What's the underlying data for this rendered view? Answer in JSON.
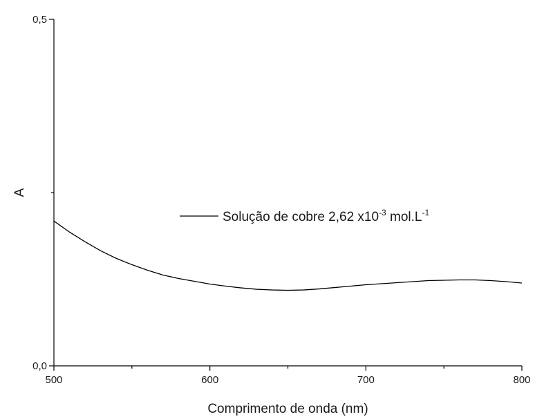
{
  "chart_data": {
    "type": "line",
    "xlabel": "Comprimento de onda (nm)",
    "ylabel": "A",
    "xlim": [
      500,
      800
    ],
    "ylim": [
      0.0,
      0.5
    ],
    "x_ticks": [
      500,
      600,
      700,
      800
    ],
    "x_tick_labels": [
      "500",
      "600",
      "700",
      "800"
    ],
    "y_ticks": [
      0.0,
      0.5
    ],
    "y_tick_labels": [
      "0,0",
      "0,5"
    ],
    "legend": {
      "placement": "center-right",
      "text": "Solução de cobre 2,62 x10",
      "sup1": "-3",
      "mid": " mol.L",
      "sup2": "-1"
    },
    "grid": false,
    "series": [
      {
        "color": "#000000",
        "x": [
          500,
          510,
          520,
          530,
          540,
          550,
          560,
          570,
          580,
          590,
          600,
          610,
          620,
          630,
          640,
          650,
          660,
          670,
          680,
          690,
          700,
          710,
          720,
          730,
          740,
          750,
          760,
          770,
          780,
          790,
          800
        ],
        "y": [
          0.209,
          0.193,
          0.179,
          0.166,
          0.155,
          0.146,
          0.138,
          0.131,
          0.126,
          0.122,
          0.118,
          0.115,
          0.1125,
          0.1105,
          0.1095,
          0.109,
          0.1095,
          0.111,
          0.113,
          0.115,
          0.117,
          0.1185,
          0.12,
          0.1215,
          0.123,
          0.1235,
          0.124,
          0.124,
          0.123,
          0.1215,
          0.1195
        ]
      }
    ]
  }
}
